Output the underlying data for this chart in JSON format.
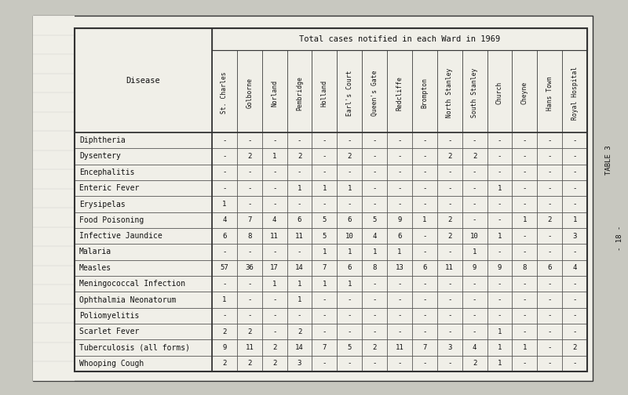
{
  "title": "Total cases notified in each Ward in 1969",
  "table3_label": "TABLE 3",
  "page_label": "- 18 -",
  "disease_header": "Disease",
  "wards": [
    "St. Charles",
    "Golborne",
    "Norland",
    "Pembridge",
    "Holland",
    "Earl's Court",
    "Queen's Gate",
    "Redcliffe",
    "Brompton",
    "North Stanley",
    "South Stanley",
    "Church",
    "Cheyne",
    "Hans Town",
    "Royal Hospital"
  ],
  "diseases": [
    "Diphtheria",
    "Dysentery",
    "Encephalitis",
    "Enteric Fever",
    "Erysipelas",
    "Food Poisoning",
    "Infective Jaundice",
    "Malaria",
    "Measles",
    "Meningococcal Infection",
    "Ophthalmia Neonatorum",
    "Poliomyelitis",
    "Scarlet Fever",
    "Tuberculosis (all forms)",
    "Whooping Cough"
  ],
  "data": [
    [
      "-",
      "-",
      "-",
      "-",
      "-",
      "-",
      "-",
      "-",
      "-",
      "-",
      "-",
      "-",
      "-",
      "-",
      "-"
    ],
    [
      "-",
      "2",
      "1",
      "2",
      "-",
      "2",
      "-",
      "-",
      "-",
      "2",
      "2",
      "-",
      "-",
      "-",
      "-"
    ],
    [
      "-",
      "-",
      "-",
      "-",
      "-",
      "-",
      "-",
      "-",
      "-",
      "-",
      "-",
      "-",
      "-",
      "-",
      "-"
    ],
    [
      "-",
      "-",
      "-",
      "1",
      "1",
      "1",
      "-",
      "-",
      "-",
      "-",
      "-",
      "1",
      "-",
      "-",
      "-"
    ],
    [
      "1",
      "-",
      "-",
      "-",
      "-",
      "-",
      "-",
      "-",
      "-",
      "-",
      "-",
      "-",
      "-",
      "-",
      "-"
    ],
    [
      "4",
      "7",
      "4",
      "6",
      "5",
      "6",
      "5",
      "9",
      "1",
      "2",
      "-",
      "-",
      "1",
      "2",
      "1"
    ],
    [
      "6",
      "8",
      "11",
      "11",
      "5",
      "10",
      "4",
      "6",
      "-",
      "2",
      "10",
      "1",
      "-",
      "-",
      "3"
    ],
    [
      "-",
      "-",
      "-",
      "-",
      "1",
      "1",
      "1",
      "1",
      "-",
      "-",
      "1",
      "-",
      "-",
      "-",
      "-"
    ],
    [
      "57",
      "36",
      "17",
      "14",
      "7",
      "6",
      "8",
      "13",
      "6",
      "11",
      "9",
      "9",
      "8",
      "6",
      "4"
    ],
    [
      "-",
      "-",
      "1",
      "1",
      "1",
      "1",
      "-",
      "-",
      "-",
      "-",
      "-",
      "-",
      "-",
      "-",
      "-"
    ],
    [
      "1",
      "-",
      "-",
      "1",
      "-",
      "-",
      "-",
      "-",
      "-",
      "-",
      "-",
      "-",
      "-",
      "-",
      "-"
    ],
    [
      "-",
      "-",
      "-",
      "-",
      "-",
      "-",
      "-",
      "-",
      "-",
      "-",
      "-",
      "-",
      "-",
      "-",
      "-"
    ],
    [
      "2",
      "2",
      "-",
      "2",
      "-",
      "-",
      "-",
      "-",
      "-",
      "-",
      "-",
      "1",
      "-",
      "-",
      "-"
    ],
    [
      "9",
      "11",
      "2",
      "14",
      "7",
      "5",
      "2",
      "11",
      "7",
      "3",
      "4",
      "1",
      "1",
      "-",
      "2"
    ],
    [
      "2",
      "2",
      "2",
      "3",
      "-",
      "-",
      "-",
      "-",
      "-",
      "-",
      "2",
      "1",
      "-",
      "-",
      "-"
    ]
  ],
  "page_bg": "#c8c8c0",
  "table_bg": "#f0efe8",
  "border_color": "#333333",
  "text_color": "#111111",
  "font_size_data": 6.5,
  "font_size_disease": 7.0,
  "font_size_header": 7.5,
  "font_size_ward": 5.8,
  "font_size_title": 7.5,
  "font_size_side": 6.5
}
